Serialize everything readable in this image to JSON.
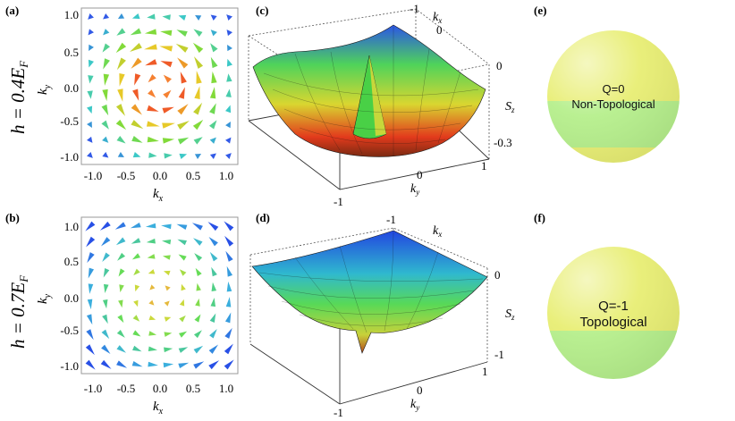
{
  "panels": {
    "a": {
      "label": "(a)"
    },
    "b": {
      "label": "(b)"
    },
    "c": {
      "label": "(c)"
    },
    "d": {
      "label": "(d)"
    },
    "e": {
      "label": "(e)"
    },
    "f": {
      "label": "(f)"
    }
  },
  "rows": {
    "top": {
      "h_text": "h = 0.4E",
      "sub": "F"
    },
    "bottom": {
      "h_text": "h = 0.7E",
      "sub": "F"
    }
  },
  "vector_plot": {
    "x_ticks": [
      "-1.0",
      "-0.5",
      "0.0",
      "0.5",
      "1.0"
    ],
    "y_ticks": [
      "1.0",
      "0.5",
      "0.0",
      "-0.5",
      "-1.0"
    ],
    "xlabel": "k",
    "xlabel_sub": "x",
    "ylabel": "k",
    "ylabel_sub": "y"
  },
  "surface_plot": {
    "c": {
      "kx_top": "-1",
      "kx_mid": "0",
      "kx_label": "k",
      "kx_sub": "x",
      "ky_left": "-1",
      "ky_mid": "0",
      "ky_right": "1",
      "ky_label": "k",
      "ky_sub": "y",
      "sz_top": "0",
      "sz_bottom": "-0.3",
      "sz_label": "S",
      "sz_sub": "z"
    },
    "d": {
      "kx_top": "-1",
      "kx_label": "k",
      "kx_sub": "x",
      "ky_left": "-1",
      "ky_mid": "0",
      "ky_right": "1",
      "ky_label": "k",
      "ky_sub": "y",
      "sz_top": "0",
      "sz_bottom": "-1",
      "sz_label": "S",
      "sz_sub": "z"
    }
  },
  "spheres": {
    "e": {
      "q": "Q=0",
      "desc": "Non-Topological"
    },
    "f": {
      "q": "Q=-1",
      "desc": "Topological"
    }
  },
  "colors": {
    "yellow": "#e8ee74",
    "green": "#b6ef8c",
    "red": "#e02020",
    "blue": "#2a4de0"
  }
}
